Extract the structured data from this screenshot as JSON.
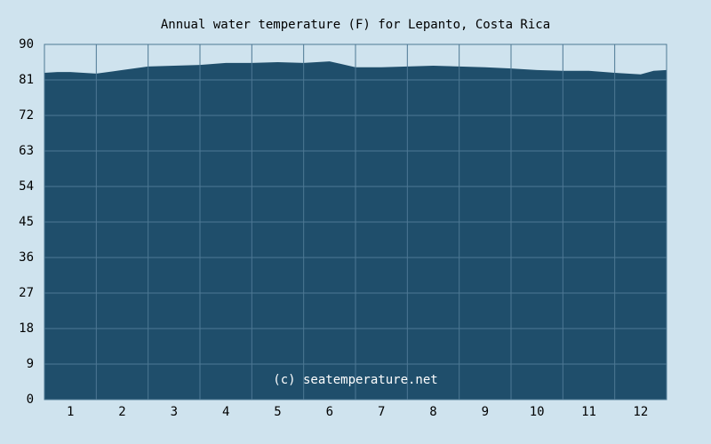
{
  "chart_data": {
    "type": "area",
    "title": "Annual water temperature (F) for Lepanto, Costa Rica",
    "x": [
      0,
      0.25,
      0.5,
      1,
      1.5,
      2,
      2.5,
      3,
      3.5,
      4,
      4.5,
      5,
      5.5,
      6,
      6.5,
      7,
      7.5,
      8,
      8.5,
      9,
      9.5,
      10,
      10.5,
      11,
      11.5,
      11.75,
      12
    ],
    "values": [
      82.8,
      83.0,
      83.0,
      82.6,
      83.5,
      84.4,
      84.6,
      84.8,
      85.3,
      85.3,
      85.5,
      85.3,
      85.7,
      84.2,
      84.2,
      84.4,
      84.6,
      84.4,
      84.2,
      83.9,
      83.5,
      83.3,
      83.3,
      82.8,
      82.4,
      83.3,
      83.5
    ],
    "color": "#1f4e6b",
    "xlim": [
      0,
      12
    ],
    "xticks": [
      {
        "value": 0.5,
        "label": "1"
      },
      {
        "value": 1.5,
        "label": "2"
      },
      {
        "value": 2.5,
        "label": "3"
      },
      {
        "value": 3.5,
        "label": "4"
      },
      {
        "value": 4.5,
        "label": "5"
      },
      {
        "value": 5.5,
        "label": "6"
      },
      {
        "value": 6.5,
        "label": "7"
      },
      {
        "value": 7.5,
        "label": "8"
      },
      {
        "value": 8.5,
        "label": "9"
      },
      {
        "value": 9.5,
        "label": "10"
      },
      {
        "value": 10.5,
        "label": "11"
      },
      {
        "value": 11.5,
        "label": "12"
      }
    ],
    "ylim": [
      0,
      90
    ],
    "yticks": [
      0,
      9,
      18,
      27,
      36,
      45,
      54,
      63,
      72,
      81,
      90
    ],
    "grid": true,
    "annotation": "(c) seatemperature.net"
  }
}
